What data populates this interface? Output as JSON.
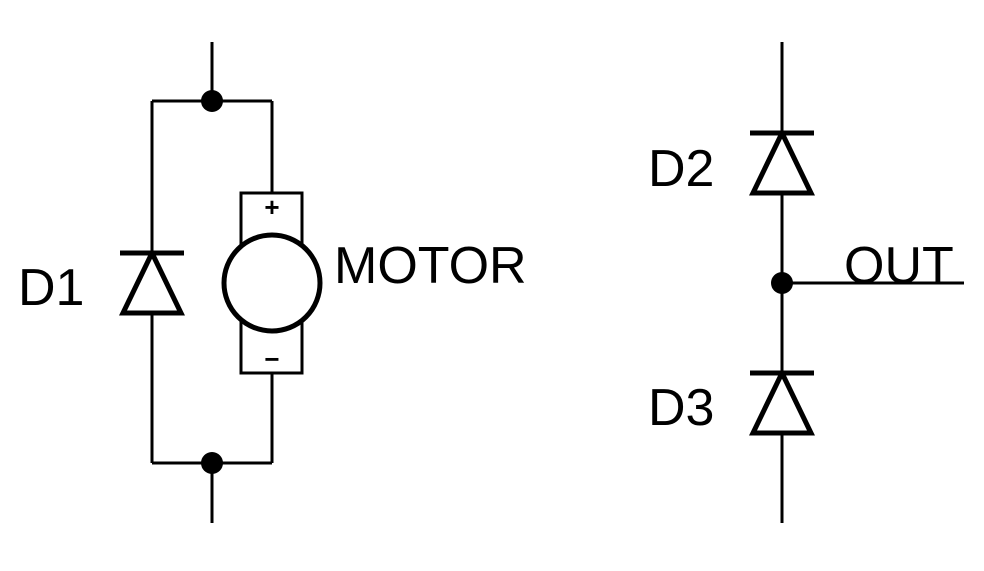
{
  "left_circuit": {
    "diode_label": "D1",
    "motor_label": "MOTOR",
    "motor_plus": "+",
    "motor_minus": "−"
  },
  "right_circuit": {
    "top_diode_label": "D2",
    "bottom_diode_label": "D3",
    "output_label": "OUT"
  }
}
